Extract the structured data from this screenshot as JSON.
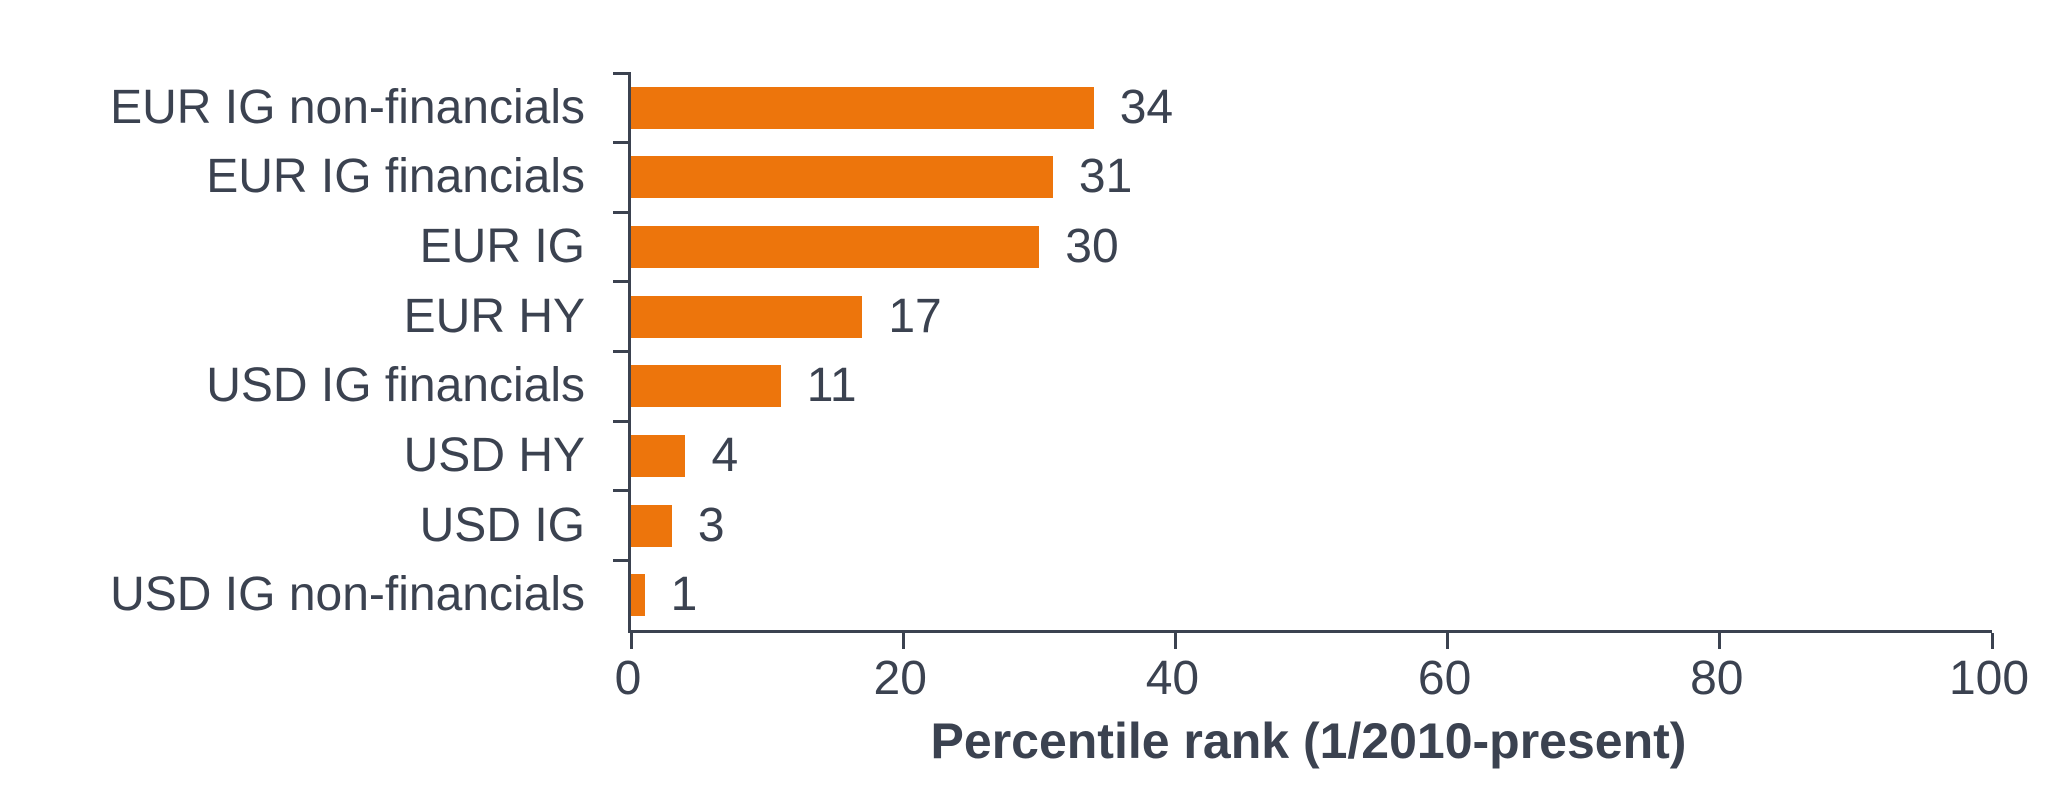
{
  "chart_data": {
    "type": "bar",
    "orientation": "horizontal",
    "title": "",
    "categories": [
      "EUR IG non-financials",
      "EUR IG financials",
      "EUR IG",
      "EUR HY",
      "USD IG financials",
      "USD HY",
      "USD IG",
      "USD IG non-financials"
    ],
    "values": [
      34,
      31,
      30,
      17,
      11,
      4,
      3,
      1
    ],
    "data_labels": [
      "34",
      "31",
      "30",
      "17",
      "11",
      "4",
      "3",
      "1"
    ],
    "xlabel": "Percentile rank (1/2010-present)",
    "ylabel": "",
    "x_ticks": [
      0,
      20,
      40,
      60,
      80,
      100
    ],
    "xlim": [
      0,
      100
    ],
    "grid": false,
    "legend": null,
    "bar_color": "#ED750C",
    "text_color": "#3B4250",
    "background_color": "#FFFFFF"
  }
}
